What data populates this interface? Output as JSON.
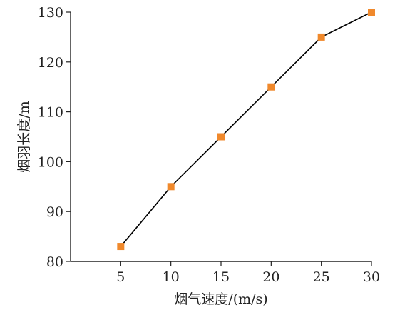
{
  "chart_data": {
    "type": "line",
    "x": [
      5,
      10,
      15,
      20,
      25,
      30
    ],
    "series": [
      {
        "values": [
          83,
          95,
          105,
          115,
          125,
          130
        ]
      }
    ],
    "xlabel": "烟气速度/(m/s)",
    "ylabel": "烟羽长度/m",
    "xlim": [
      0,
      30
    ],
    "ylim": [
      80,
      130
    ],
    "x_ticks": [
      5,
      10,
      15,
      20,
      25,
      30
    ],
    "y_ticks": [
      80,
      90,
      100,
      110,
      120,
      130
    ],
    "grid": false,
    "legend": "none",
    "marker": "square",
    "colors": {
      "line": "#000000",
      "marker": "#f0892c",
      "axis": "#222222"
    }
  }
}
